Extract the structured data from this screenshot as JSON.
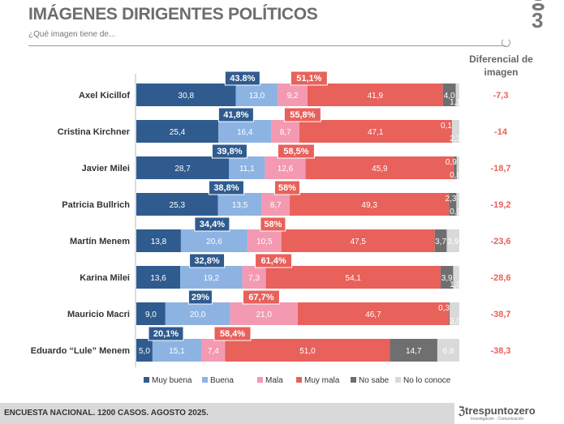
{
  "header": {
    "title": "IMÁGENES DIRIGENTES POLÍTICOS",
    "subtitle": "¿Qué imagen tiene de...",
    "diff_header": "Diferencial de imagen"
  },
  "footer": {
    "text": "ENCUESTA NACIONAL. 1200 CASOS. AGOSTO 2025.",
    "brand": "trespuntozero",
    "brand_sub": "Investigación - Comunicación"
  },
  "chart_data": {
    "type": "bar",
    "orientation": "horizontal-stacked",
    "xlim": [
      0,
      100
    ],
    "legend_position": "bottom",
    "categories": [
      "Axel Kicillof",
      "Cristina Kirchner",
      "Javier Milei",
      "Patricia Bullrich",
      "Martín Menem",
      "Karina Milei",
      "Mauricio Macri",
      "Eduardo “Lule” Menem"
    ],
    "series": [
      {
        "name": "Muy buena",
        "color": "#2f5b8f",
        "values": [
          30.8,
          25.4,
          28.7,
          25.3,
          13.8,
          13.6,
          9.0,
          5.0
        ],
        "labels": [
          "30,8",
          "25,4",
          "28,7",
          "25,3",
          "13,8",
          "13,6",
          "9,0",
          "5,0"
        ]
      },
      {
        "name": "Buena",
        "color": "#8db3e2",
        "values": [
          13.0,
          16.4,
          11.1,
          13.5,
          20.6,
          19.2,
          20.0,
          15.1
        ],
        "labels": [
          "13,0",
          "16,4",
          "11,1",
          "13,5",
          "20,6",
          "19,2",
          "20,0",
          "15,1"
        ]
      },
      {
        "name": "Mala",
        "color": "#f39ab2",
        "values": [
          9.2,
          8.7,
          12.6,
          8.7,
          10.5,
          7.3,
          21.0,
          7.4
        ],
        "labels": [
          "9,2",
          "8,7",
          "12,6",
          "8,7",
          "10,5",
          "7,3",
          "21,0",
          "7,4"
        ]
      },
      {
        "name": "Muy mala",
        "color": "#e8615a",
        "values": [
          41.9,
          47.1,
          45.9,
          49.3,
          47.5,
          54.1,
          46.7,
          51.0
        ],
        "labels": [
          "41,9",
          "47,1",
          "45,9",
          "49,3",
          "47,5",
          "54,1",
          "46,7",
          "51,0"
        ]
      },
      {
        "name": "No  sabe",
        "color": "#6f6f6f",
        "values": [
          4.0,
          0.1,
          0.9,
          2.3,
          3.7,
          3.9,
          0.3,
          14.7
        ],
        "labels": [
          "4,0",
          "0,1",
          "0,9",
          "2,3",
          "3,7",
          "3,9",
          "0,3",
          "14,7"
        ]
      },
      {
        "name": "No lo conoce",
        "color": "#d9d9d9",
        "values": [
          1.1,
          2.3,
          0.8,
          0.9,
          3.9,
          1.9,
          3.0,
          6.8
        ],
        "labels": [
          "1,1",
          "2,3",
          "0,8",
          "0,9",
          "3,9",
          "1,9",
          "3,0",
          "6,8"
        ]
      }
    ],
    "positive_totals": [
      "43.8%",
      "41,8%",
      "39,8%",
      "38,8%",
      "34,4%",
      "32,8%",
      "29%",
      "20,1%"
    ],
    "negative_totals": [
      "51,1%",
      "55,8%",
      "58,5%",
      "58%",
      "58%",
      "61,4%",
      "67,7%",
      "58,4%"
    ],
    "positive_values": [
      43.8,
      41.8,
      39.8,
      38.8,
      34.4,
      32.8,
      29,
      20.1
    ],
    "differential": [
      "-7,3",
      "-14",
      "-18,7",
      "-19,2",
      "-23,6",
      "-28,6",
      "-38,7",
      "-38,3"
    ],
    "differential_color": "#e8615a"
  }
}
